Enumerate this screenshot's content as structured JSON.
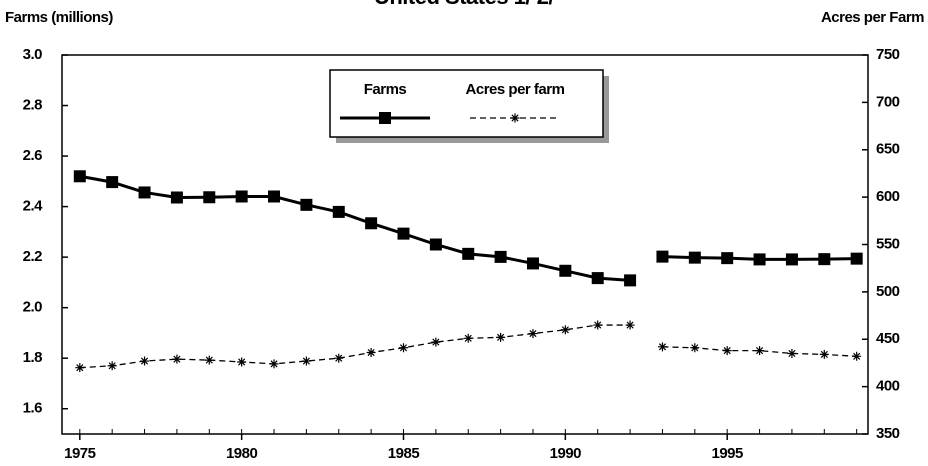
{
  "chart_data": {
    "type": "line",
    "title": "United States 1/ 2/",
    "ylabel": "Farms (millions)",
    "y2label": "Acres per Farm",
    "x": [
      1975,
      1976,
      1977,
      1978,
      1979,
      1980,
      1981,
      1982,
      1983,
      1984,
      1985,
      1986,
      1987,
      1988,
      1989,
      1990,
      1991,
      1992,
      1993,
      1994,
      1995,
      1996,
      1997,
      1998,
      1999
    ],
    "gap_after": 1992,
    "series": [
      {
        "name": "Farms",
        "color": "#000000",
        "marker": "square",
        "values": [
          2.52,
          2.497,
          2.456,
          2.436,
          2.437,
          2.44,
          2.44,
          2.407,
          2.379,
          2.334,
          2.293,
          2.25,
          2.213,
          2.201,
          2.175,
          2.146,
          2.117,
          2.108,
          2.202,
          2.198,
          2.196,
          2.191,
          2.191,
          2.192,
          2.194
        ]
      },
      {
        "name": "Acres per farm",
        "color": "#000000",
        "marker": "asterisk",
        "dashed": true,
        "axis": "y2",
        "values": [
          420,
          422,
          427,
          429,
          428,
          426,
          424,
          427,
          430,
          436,
          441,
          447,
          451,
          452,
          456,
          460,
          465,
          465,
          442,
          441,
          438,
          438,
          435,
          434,
          432
        ]
      }
    ],
    "xlim": [
      1974.45,
      1999.35
    ],
    "xticks": [
      1975,
      1980,
      1985,
      1990,
      1995
    ],
    "ylim": [
      1.5,
      3.0
    ],
    "yticks": [
      1.6,
      1.8,
      {
        "value": 2.0,
        "label": "2.0"
      },
      2.2,
      2.4,
      2.6,
      2.8,
      {
        "value": 3.0,
        "label": "3.0"
      }
    ],
    "y2lim": [
      350,
      750
    ],
    "y2ticks": [
      350,
      400,
      450,
      500,
      550,
      600,
      650,
      700,
      750
    ],
    "legend": "top-center"
  }
}
